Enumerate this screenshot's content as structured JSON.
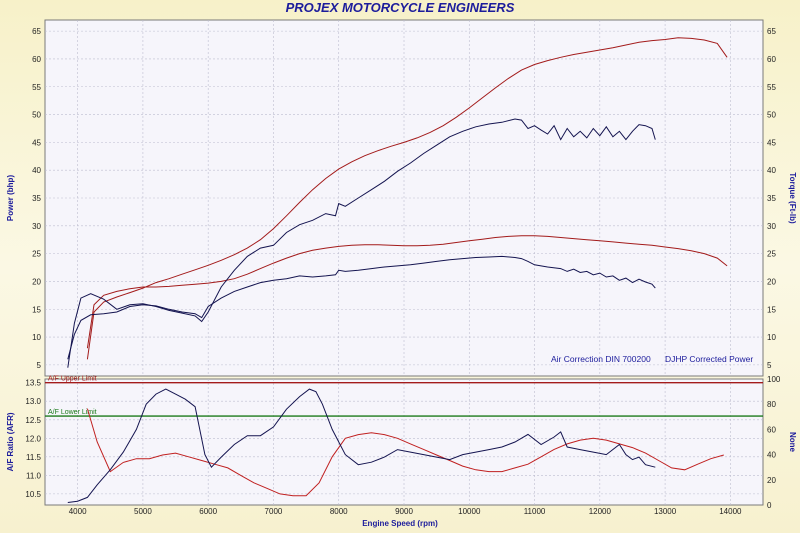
{
  "chart_data": [
    {
      "type": "line",
      "title": "PROJEX MOTORCYCLE ENGINEERS",
      "ylabel_left": "Power (bhp)",
      "ylabel_right": "Torque (Ft-lb)",
      "xlim": [
        3500,
        14500
      ],
      "ylim": [
        3,
        67
      ],
      "yticks": [
        5,
        10,
        15,
        20,
        25,
        30,
        35,
        40,
        45,
        50,
        55,
        60,
        65
      ],
      "grid": true,
      "annotations": [
        "Air Correction DIN 700200",
        "DJHP Corrected Power"
      ],
      "series": [
        {
          "color": "#a31b1b",
          "x": [
            4150,
            4250,
            4400,
            4600,
            4800,
            5000,
            5200,
            5400,
            5600,
            5800,
            6000,
            6200,
            6400,
            6600,
            6800,
            7000,
            7200,
            7400,
            7600,
            7800,
            8000,
            8200,
            8400,
            8600,
            8800,
            9000,
            9200,
            9400,
            9600,
            9800,
            10000,
            10200,
            10400,
            10600,
            10800,
            11000,
            11200,
            11400,
            11600,
            11800,
            12000,
            12200,
            12400,
            12600,
            12800,
            13000,
            13200,
            13400,
            13600,
            13800,
            13950
          ],
          "values": [
            6,
            14.5,
            16.3,
            17.2,
            18,
            18.8,
            19.8,
            20.5,
            21.3,
            22.1,
            22.9,
            23.8,
            24.8,
            26,
            27.5,
            29.5,
            31.8,
            34.2,
            36.5,
            38.5,
            40.2,
            41.5,
            42.6,
            43.5,
            44.3,
            45.0,
            45.8,
            46.8,
            48.0,
            49.5,
            51.2,
            53.0,
            54.8,
            56.5,
            58.0,
            59.0,
            59.7,
            60.3,
            60.8,
            61.2,
            61.6,
            62.0,
            62.5,
            63.0,
            63.3,
            63.5,
            63.8,
            63.7,
            63.4,
            62.8,
            60.3
          ]
        },
        {
          "color": "#a31b1b",
          "x": [
            4150,
            4250,
            4400,
            4600,
            4800,
            5000,
            5200,
            5400,
            5600,
            5800,
            6000,
            6200,
            6400,
            6600,
            6800,
            7000,
            7200,
            7400,
            7600,
            7800,
            8000,
            8200,
            8400,
            8600,
            8800,
            9000,
            9200,
            9400,
            9600,
            9800,
            10000,
            10200,
            10400,
            10600,
            10800,
            11000,
            11200,
            11400,
            11600,
            11800,
            12000,
            12200,
            12400,
            12600,
            12800,
            13000,
            13200,
            13400,
            13600,
            13800,
            13950
          ],
          "values": [
            8,
            15.8,
            17.5,
            18.2,
            18.7,
            19.0,
            19.0,
            19.1,
            19.3,
            19.5,
            19.7,
            20.0,
            20.5,
            21.3,
            22.3,
            23.3,
            24.2,
            25.0,
            25.6,
            26.0,
            26.3,
            26.5,
            26.6,
            26.6,
            26.5,
            26.4,
            26.4,
            26.5,
            26.7,
            27.0,
            27.3,
            27.6,
            27.9,
            28.1,
            28.2,
            28.2,
            28.1,
            27.9,
            27.7,
            27.5,
            27.3,
            27.1,
            26.9,
            26.7,
            26.5,
            26.2,
            25.9,
            25.5,
            25.0,
            24.2,
            22.8
          ]
        },
        {
          "color": "#141450",
          "x": [
            3850,
            3950,
            4050,
            4200,
            4400,
            4600,
            4800,
            5000,
            5200,
            5400,
            5600,
            5800,
            5900,
            6000,
            6200,
            6400,
            6600,
            6800,
            7000,
            7200,
            7400,
            7600,
            7800,
            7950,
            8000,
            8100,
            8300,
            8500,
            8700,
            8900,
            9100,
            9300,
            9500,
            9700,
            9900,
            10100,
            10300,
            10500,
            10700,
            10800,
            10900,
            11000,
            11200,
            11400,
            11500,
            11600,
            11700,
            11800,
            11900,
            12000,
            12100,
            12200,
            12300,
            12400,
            12500,
            12600,
            12700,
            12800,
            12850
          ],
          "values": [
            6,
            10.5,
            13.0,
            14.0,
            14.2,
            14.5,
            15.5,
            15.8,
            15.6,
            15.0,
            14.5,
            14.2,
            13.5,
            15.5,
            17.0,
            18.2,
            19.0,
            19.8,
            20.2,
            20.5,
            21.0,
            20.8,
            21.0,
            21.2,
            22.0,
            21.8,
            22.0,
            22.3,
            22.6,
            22.8,
            23.0,
            23.3,
            23.6,
            23.9,
            24.1,
            24.3,
            24.4,
            24.5,
            24.3,
            24.1,
            23.6,
            23.0,
            22.6,
            22.3,
            21.8,
            22.2,
            21.6,
            21.8,
            21.2,
            21.5,
            20.8,
            21.0,
            20.2,
            20.6,
            19.8,
            20.4,
            19.9,
            19.5,
            18.8
          ]
        },
        {
          "color": "#141450",
          "x": [
            3850,
            3950,
            4050,
            4200,
            4400,
            4600,
            4800,
            5000,
            5200,
            5400,
            5600,
            5800,
            5900,
            6000,
            6200,
            6400,
            6600,
            6800,
            7000,
            7200,
            7400,
            7600,
            7800,
            7950,
            8000,
            8100,
            8300,
            8500,
            8700,
            8900,
            9100,
            9300,
            9500,
            9700,
            9900,
            10100,
            10300,
            10500,
            10700,
            10800,
            10900,
            11000,
            11100,
            11200,
            11300,
            11400,
            11500,
            11600,
            11700,
            11800,
            11900,
            12000,
            12100,
            12200,
            12300,
            12400,
            12500,
            12600,
            12700,
            12800,
            12850
          ],
          "values": [
            4.5,
            12.5,
            17.0,
            17.8,
            16.8,
            15.0,
            15.8,
            16.0,
            15.5,
            14.8,
            14.3,
            13.8,
            12.8,
            14.5,
            19.0,
            22.0,
            24.5,
            26.0,
            26.5,
            28.8,
            30.2,
            31.0,
            32.2,
            31.8,
            34.0,
            33.5,
            35.0,
            36.5,
            38.0,
            39.8,
            41.3,
            43.0,
            44.5,
            46.0,
            47.0,
            47.8,
            48.3,
            48.6,
            49.2,
            49.0,
            47.5,
            48.0,
            47.2,
            46.5,
            48.0,
            45.5,
            47.5,
            46.0,
            47.0,
            45.8,
            47.5,
            46.2,
            47.8,
            46.0,
            47.0,
            45.5,
            47.0,
            48.2,
            48.0,
            47.5,
            45.5
          ]
        }
      ]
    },
    {
      "type": "line",
      "xlabel": "Engine Speed (rpm)",
      "ylabel_left": "A/F Ratio (AFR)",
      "ylabel_right": "None",
      "xlim": [
        3500,
        14500
      ],
      "ylim_left": [
        10.2,
        13.6
      ],
      "ylim_right": [
        0,
        100
      ],
      "xticks": [
        4000,
        5000,
        6000,
        7000,
        8000,
        9000,
        10000,
        11000,
        12000,
        13000,
        14000
      ],
      "yticks_left": [
        10.5,
        11.0,
        11.5,
        12.0,
        12.5,
        13.0,
        13.5
      ],
      "yticks_right": [
        0,
        20,
        40,
        60,
        80,
        100
      ],
      "grid": true,
      "limits": [
        {
          "label": "A/F Upper Limit",
          "value": 13.5,
          "color": "#a31b1b"
        },
        {
          "label": "A/F Lower Limit",
          "value": 12.6,
          "color": "#1b7a1b"
        }
      ],
      "series": [
        {
          "color": "#c02020",
          "x": [
            4150,
            4300,
            4500,
            4700,
            4900,
            5100,
            5300,
            5500,
            5700,
            5900,
            6100,
            6300,
            6500,
            6700,
            6900,
            7100,
            7300,
            7500,
            7700,
            7900,
            8100,
            8300,
            8500,
            8700,
            8900,
            9100,
            9300,
            9500,
            9700,
            9900,
            10100,
            10300,
            10500,
            10700,
            10900,
            11100,
            11300,
            11500,
            11700,
            11900,
            12100,
            12300,
            12500,
            12700,
            12900,
            13100,
            13300,
            13500,
            13700,
            13900
          ],
          "values": [
            12.8,
            11.9,
            11.1,
            11.35,
            11.45,
            11.45,
            11.55,
            11.6,
            11.5,
            11.4,
            11.3,
            11.2,
            11.0,
            10.8,
            10.65,
            10.5,
            10.45,
            10.45,
            10.8,
            11.5,
            12.0,
            12.1,
            12.15,
            12.1,
            12.0,
            11.85,
            11.7,
            11.55,
            11.4,
            11.25,
            11.15,
            11.1,
            11.1,
            11.2,
            11.3,
            11.5,
            11.7,
            11.85,
            11.95,
            12.0,
            11.95,
            11.85,
            11.75,
            11.6,
            11.4,
            11.2,
            11.15,
            11.3,
            11.45,
            11.55
          ]
        },
        {
          "color": "#141450",
          "x": [
            3850,
            4000,
            4150,
            4300,
            4500,
            4700,
            4900,
            5050,
            5200,
            5350,
            5500,
            5650,
            5800,
            5950,
            6050,
            6200,
            6400,
            6600,
            6800,
            7000,
            7200,
            7400,
            7550,
            7650,
            7750,
            7900,
            8100,
            8300,
            8500,
            8700,
            8900,
            9100,
            9300,
            9500,
            9700,
            9900,
            10100,
            10300,
            10500,
            10700,
            10900,
            11100,
            11300,
            11400,
            11500,
            11700,
            11900,
            12100,
            12300,
            12400,
            12500,
            12600,
            12700,
            12850
          ],
          "values": [
            2,
            3,
            6,
            16,
            28,
            42,
            60,
            80,
            88,
            92,
            88,
            84,
            78,
            40,
            30,
            38,
            48,
            55,
            55,
            62,
            76,
            86,
            92,
            90,
            80,
            60,
            40,
            32,
            34,
            38,
            44,
            42,
            40,
            38,
            36,
            40,
            42,
            44,
            46,
            50,
            56,
            48,
            54,
            58,
            46,
            44,
            42,
            40,
            48,
            40,
            36,
            38,
            32,
            30
          ]
        }
      ]
    }
  ]
}
